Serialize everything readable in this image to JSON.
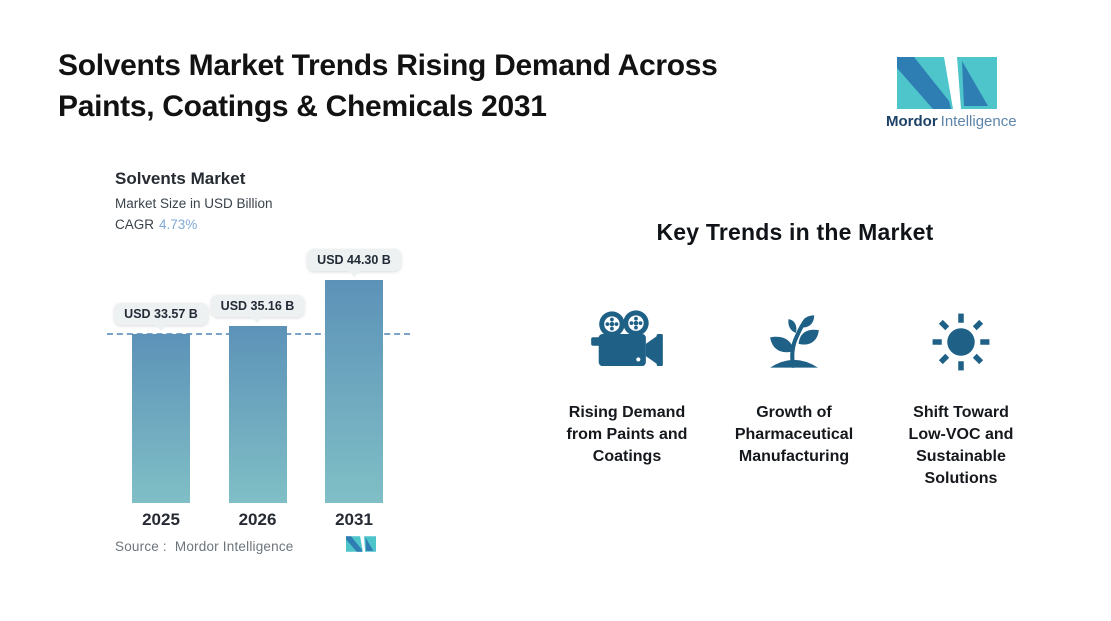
{
  "header": {
    "title_line1": "Solvents Market Trends Rising Demand Across",
    "title_line2": "Paints, Coatings & Chemicals 2031",
    "brand": {
      "bold": "Mordor",
      "light": "Intelligence",
      "logo_icon": "mordor-intelligence-logo"
    }
  },
  "chart": {
    "title": "Solvents Market",
    "subtitle": "Market Size in USD Billion",
    "cagr_label": "CAGR",
    "cagr_value": "4.73%",
    "source_label": "Source :",
    "source_value": "Mordor Intelligence"
  },
  "chart_data": {
    "type": "bar",
    "title": "Solvents Market",
    "subtitle": "Market Size in USD Billion",
    "cagr": "4.73%",
    "categories": [
      "2025",
      "2026",
      "2031"
    ],
    "values": [
      33.57,
      35.16,
      44.3
    ],
    "value_labels": [
      "USD 33.57 B",
      "USD 35.16 B",
      "USD 44.30 B"
    ],
    "unit": "USD Billion",
    "ylim": [
      0,
      44.3
    ],
    "reference_line": {
      "y": 33.57,
      "style": "dashed"
    },
    "gridlines": false,
    "legend": false,
    "bar_gradient": [
      "#5c92b8",
      "#80bfc6"
    ]
  },
  "trends": {
    "heading": "Key Trends in the Market",
    "items": [
      {
        "icon": "movie-camera-icon",
        "label": "Rising Demand from Paints and Coatings",
        "lines": [
          "Rising Demand",
          "from Paints and",
          "Coatings"
        ]
      },
      {
        "icon": "plant-growth-icon",
        "label": "Growth of Pharmaceutical Manufacturing",
        "lines": [
          "Growth of",
          "Pharmaceutical",
          "Manufacturing"
        ]
      },
      {
        "icon": "sun-icon",
        "label": "Shift Toward Low-VOC and Sustainable Solutions",
        "lines": [
          "Shift Toward",
          "Low-VOC and",
          "Sustainable",
          "Solutions"
        ]
      }
    ]
  },
  "colors": {
    "logo-teal": "#4ec4cb",
    "logo-blue": "#2e7eb4",
    "icon-blue": "#1e6086",
    "bar-top": "#5c92b8",
    "bar-bottom": "#80bfc6",
    "dash": "#7ba3c9",
    "badge-bg": "#eef1f2",
    "ink": "#121212",
    "gray": "#6d757c",
    "cagr": "#7fa9d4"
  }
}
